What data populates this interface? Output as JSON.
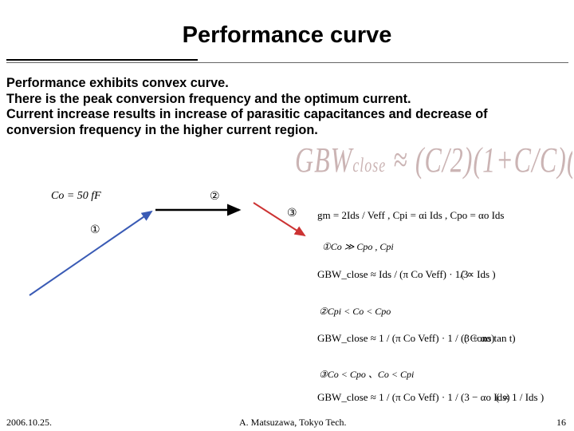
{
  "title": "Performance curve",
  "body_lines": [
    "Performance exhibits convex curve.",
    "There is the peak conversion frequency and the optimum current.",
    "Current increase results in increase of parasitic capacitances and decrease of",
    "conversion frequency in the higher current region."
  ],
  "co_label": "Co = 50 fF",
  "region_markers": [
    "①",
    "②",
    "③"
  ],
  "gm_equation": "gm = 2Ids / Veff , Cpi = αi Ids , Cpo = αo Ids",
  "conditions": {
    "c1": "①Co ≫ Cpo , Cpi",
    "c2": "②Cpi < Co < Cpo",
    "c3": "③Co < Cpo 、Co < Cpi"
  },
  "equations": {
    "e1": "GBW_close ≈ Ids / (π Co Veff) · 1/3",
    "e1_note": "( ∝ Ids )",
    "e2": "GBW_close ≈ 1 / (π Co Veff) · 1 / (3 + αo)",
    "e2_note": "( Cons tan t)",
    "e3": "GBW_close ≈ 1 / (π Co Veff) · 1 / (3 − αo Ids)",
    "e3_note": "( ∝ 1 / Ids )"
  },
  "footer": {
    "date": "2006.10.25.",
    "author": "A. Matsuzawa, Tokyo Tech.",
    "page": "16"
  },
  "colors": {
    "line1": "#3a5bb5",
    "line2": "#000000",
    "line3": "#cc3333"
  }
}
